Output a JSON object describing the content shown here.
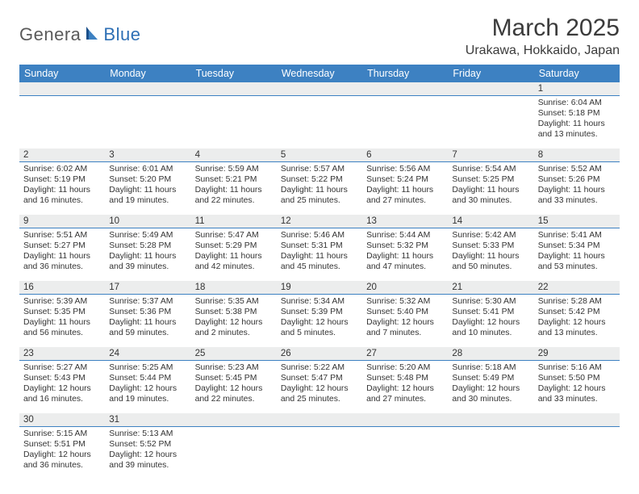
{
  "logo": {
    "part1": "Genera",
    "part2": "Blue"
  },
  "title": "March 2025",
  "location": "Urakawa, Hokkaido, Japan",
  "colors": {
    "header_bg": "#3d81c2",
    "header_text": "#ffffff",
    "daynum_bg": "#eceded",
    "daynum_border": "#3d81c2",
    "text": "#333333"
  },
  "weekdays": [
    "Sunday",
    "Monday",
    "Tuesday",
    "Wednesday",
    "Thursday",
    "Friday",
    "Saturday"
  ],
  "weeks": [
    [
      null,
      null,
      null,
      null,
      null,
      null,
      {
        "d": "1",
        "sr": "Sunrise: 6:04 AM",
        "ss": "Sunset: 5:18 PM",
        "dl1": "Daylight: 11 hours",
        "dl2": "and 13 minutes."
      }
    ],
    [
      {
        "d": "2",
        "sr": "Sunrise: 6:02 AM",
        "ss": "Sunset: 5:19 PM",
        "dl1": "Daylight: 11 hours",
        "dl2": "and 16 minutes."
      },
      {
        "d": "3",
        "sr": "Sunrise: 6:01 AM",
        "ss": "Sunset: 5:20 PM",
        "dl1": "Daylight: 11 hours",
        "dl2": "and 19 minutes."
      },
      {
        "d": "4",
        "sr": "Sunrise: 5:59 AM",
        "ss": "Sunset: 5:21 PM",
        "dl1": "Daylight: 11 hours",
        "dl2": "and 22 minutes."
      },
      {
        "d": "5",
        "sr": "Sunrise: 5:57 AM",
        "ss": "Sunset: 5:22 PM",
        "dl1": "Daylight: 11 hours",
        "dl2": "and 25 minutes."
      },
      {
        "d": "6",
        "sr": "Sunrise: 5:56 AM",
        "ss": "Sunset: 5:24 PM",
        "dl1": "Daylight: 11 hours",
        "dl2": "and 27 minutes."
      },
      {
        "d": "7",
        "sr": "Sunrise: 5:54 AM",
        "ss": "Sunset: 5:25 PM",
        "dl1": "Daylight: 11 hours",
        "dl2": "and 30 minutes."
      },
      {
        "d": "8",
        "sr": "Sunrise: 5:52 AM",
        "ss": "Sunset: 5:26 PM",
        "dl1": "Daylight: 11 hours",
        "dl2": "and 33 minutes."
      }
    ],
    [
      {
        "d": "9",
        "sr": "Sunrise: 5:51 AM",
        "ss": "Sunset: 5:27 PM",
        "dl1": "Daylight: 11 hours",
        "dl2": "and 36 minutes."
      },
      {
        "d": "10",
        "sr": "Sunrise: 5:49 AM",
        "ss": "Sunset: 5:28 PM",
        "dl1": "Daylight: 11 hours",
        "dl2": "and 39 minutes."
      },
      {
        "d": "11",
        "sr": "Sunrise: 5:47 AM",
        "ss": "Sunset: 5:29 PM",
        "dl1": "Daylight: 11 hours",
        "dl2": "and 42 minutes."
      },
      {
        "d": "12",
        "sr": "Sunrise: 5:46 AM",
        "ss": "Sunset: 5:31 PM",
        "dl1": "Daylight: 11 hours",
        "dl2": "and 45 minutes."
      },
      {
        "d": "13",
        "sr": "Sunrise: 5:44 AM",
        "ss": "Sunset: 5:32 PM",
        "dl1": "Daylight: 11 hours",
        "dl2": "and 47 minutes."
      },
      {
        "d": "14",
        "sr": "Sunrise: 5:42 AM",
        "ss": "Sunset: 5:33 PM",
        "dl1": "Daylight: 11 hours",
        "dl2": "and 50 minutes."
      },
      {
        "d": "15",
        "sr": "Sunrise: 5:41 AM",
        "ss": "Sunset: 5:34 PM",
        "dl1": "Daylight: 11 hours",
        "dl2": "and 53 minutes."
      }
    ],
    [
      {
        "d": "16",
        "sr": "Sunrise: 5:39 AM",
        "ss": "Sunset: 5:35 PM",
        "dl1": "Daylight: 11 hours",
        "dl2": "and 56 minutes."
      },
      {
        "d": "17",
        "sr": "Sunrise: 5:37 AM",
        "ss": "Sunset: 5:36 PM",
        "dl1": "Daylight: 11 hours",
        "dl2": "and 59 minutes."
      },
      {
        "d": "18",
        "sr": "Sunrise: 5:35 AM",
        "ss": "Sunset: 5:38 PM",
        "dl1": "Daylight: 12 hours",
        "dl2": "and 2 minutes."
      },
      {
        "d": "19",
        "sr": "Sunrise: 5:34 AM",
        "ss": "Sunset: 5:39 PM",
        "dl1": "Daylight: 12 hours",
        "dl2": "and 5 minutes."
      },
      {
        "d": "20",
        "sr": "Sunrise: 5:32 AM",
        "ss": "Sunset: 5:40 PM",
        "dl1": "Daylight: 12 hours",
        "dl2": "and 7 minutes."
      },
      {
        "d": "21",
        "sr": "Sunrise: 5:30 AM",
        "ss": "Sunset: 5:41 PM",
        "dl1": "Daylight: 12 hours",
        "dl2": "and 10 minutes."
      },
      {
        "d": "22",
        "sr": "Sunrise: 5:28 AM",
        "ss": "Sunset: 5:42 PM",
        "dl1": "Daylight: 12 hours",
        "dl2": "and 13 minutes."
      }
    ],
    [
      {
        "d": "23",
        "sr": "Sunrise: 5:27 AM",
        "ss": "Sunset: 5:43 PM",
        "dl1": "Daylight: 12 hours",
        "dl2": "and 16 minutes."
      },
      {
        "d": "24",
        "sr": "Sunrise: 5:25 AM",
        "ss": "Sunset: 5:44 PM",
        "dl1": "Daylight: 12 hours",
        "dl2": "and 19 minutes."
      },
      {
        "d": "25",
        "sr": "Sunrise: 5:23 AM",
        "ss": "Sunset: 5:45 PM",
        "dl1": "Daylight: 12 hours",
        "dl2": "and 22 minutes."
      },
      {
        "d": "26",
        "sr": "Sunrise: 5:22 AM",
        "ss": "Sunset: 5:47 PM",
        "dl1": "Daylight: 12 hours",
        "dl2": "and 25 minutes."
      },
      {
        "d": "27",
        "sr": "Sunrise: 5:20 AM",
        "ss": "Sunset: 5:48 PM",
        "dl1": "Daylight: 12 hours",
        "dl2": "and 27 minutes."
      },
      {
        "d": "28",
        "sr": "Sunrise: 5:18 AM",
        "ss": "Sunset: 5:49 PM",
        "dl1": "Daylight: 12 hours",
        "dl2": "and 30 minutes."
      },
      {
        "d": "29",
        "sr": "Sunrise: 5:16 AM",
        "ss": "Sunset: 5:50 PM",
        "dl1": "Daylight: 12 hours",
        "dl2": "and 33 minutes."
      }
    ],
    [
      {
        "d": "30",
        "sr": "Sunrise: 5:15 AM",
        "ss": "Sunset: 5:51 PM",
        "dl1": "Daylight: 12 hours",
        "dl2": "and 36 minutes."
      },
      {
        "d": "31",
        "sr": "Sunrise: 5:13 AM",
        "ss": "Sunset: 5:52 PM",
        "dl1": "Daylight: 12 hours",
        "dl2": "and 39 minutes."
      },
      null,
      null,
      null,
      null,
      null
    ]
  ]
}
